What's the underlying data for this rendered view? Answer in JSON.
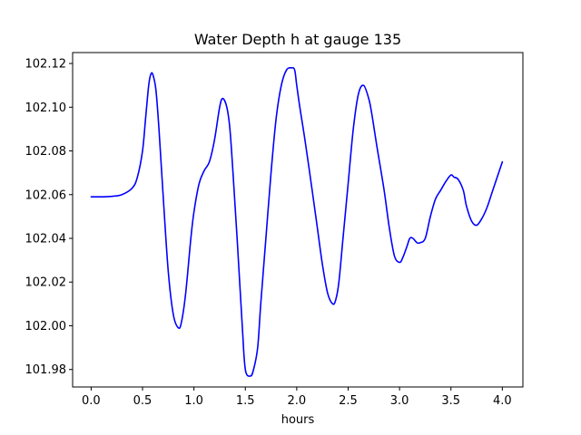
{
  "chart_data": {
    "type": "line",
    "title": "Water Depth h at gauge 135",
    "xlabel": "hours",
    "ylabel": "",
    "xlim": [
      -0.18,
      4.2
    ],
    "ylim": [
      101.972,
      102.125
    ],
    "xticks": [
      0.0,
      0.5,
      1.0,
      1.5,
      2.0,
      2.5,
      3.0,
      3.5,
      4.0
    ],
    "xtick_labels": [
      "0.0",
      "0.5",
      "1.0",
      "1.5",
      "2.0",
      "2.5",
      "3.0",
      "3.5",
      "4.0"
    ],
    "yticks": [
      101.98,
      102.0,
      102.02,
      102.04,
      102.06,
      102.08,
      102.1,
      102.12
    ],
    "ytick_labels": [
      "101.98",
      "102.00",
      "102.02",
      "102.04",
      "102.06",
      "102.08",
      "102.10",
      "102.12"
    ],
    "grid": false,
    "series": [
      {
        "color": "#0000ff",
        "x": [
          0.0,
          0.1,
          0.2,
          0.3,
          0.4,
          0.45,
          0.5,
          0.53,
          0.56,
          0.58,
          0.6,
          0.63,
          0.66,
          0.7,
          0.75,
          0.8,
          0.85,
          0.88,
          0.92,
          0.97,
          1.0,
          1.05,
          1.1,
          1.15,
          1.2,
          1.25,
          1.28,
          1.32,
          1.35,
          1.38,
          1.42,
          1.47,
          1.5,
          1.55,
          1.58,
          1.62,
          1.65,
          1.7,
          1.75,
          1.8,
          1.85,
          1.9,
          1.95,
          1.98,
          2.0,
          2.03,
          2.08,
          2.15,
          2.2,
          2.25,
          2.3,
          2.35,
          2.38,
          2.41,
          2.45,
          2.5,
          2.55,
          2.6,
          2.65,
          2.7,
          2.73,
          2.78,
          2.85,
          2.9,
          2.95,
          3.0,
          3.03,
          3.07,
          3.1,
          3.13,
          3.17,
          3.2,
          3.25,
          3.3,
          3.35,
          3.4,
          3.45,
          3.5,
          3.53,
          3.57,
          3.62,
          3.65,
          3.7,
          3.75,
          3.8,
          3.85,
          3.9,
          3.95,
          4.0
        ],
        "y": [
          102.059,
          102.059,
          102.0592,
          102.06,
          102.063,
          102.068,
          102.08,
          102.095,
          102.11,
          102.115,
          102.115,
          102.108,
          102.09,
          102.06,
          102.025,
          102.005,
          101.999,
          102.002,
          102.015,
          102.04,
          102.052,
          102.065,
          102.071,
          102.075,
          102.085,
          102.1,
          102.104,
          102.1,
          102.09,
          102.07,
          102.04,
          102.0,
          101.98,
          101.977,
          101.98,
          101.99,
          102.01,
          102.04,
          102.07,
          102.095,
          102.11,
          102.117,
          102.118,
          102.117,
          102.11,
          102.1,
          102.085,
          102.062,
          102.045,
          102.028,
          102.015,
          102.01,
          102.012,
          102.02,
          102.04,
          102.065,
          102.09,
          102.106,
          102.11,
          102.104,
          102.097,
          102.082,
          102.062,
          102.045,
          102.032,
          102.029,
          102.031,
          102.036,
          102.04,
          102.04,
          102.038,
          102.038,
          102.04,
          102.05,
          102.058,
          102.062,
          102.066,
          102.069,
          102.068,
          102.067,
          102.062,
          102.055,
          102.048,
          102.046,
          102.049,
          102.054,
          102.061,
          102.068,
          102.075
        ]
      }
    ]
  }
}
